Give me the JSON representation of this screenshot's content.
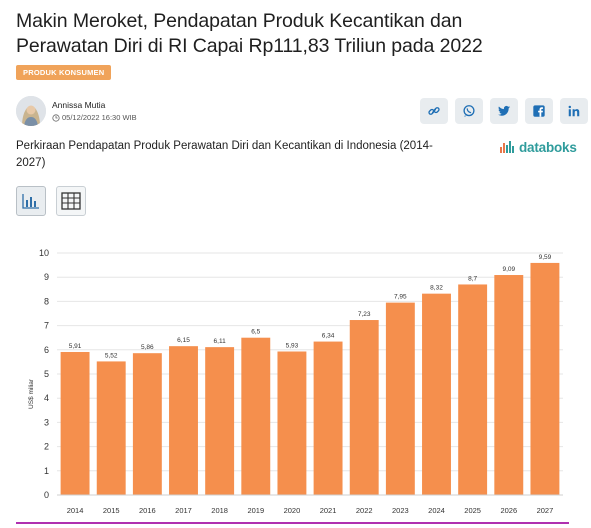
{
  "article": {
    "headline": "Makin Meroket, Pendapatan Produk Kecantikan dan Perawatan Diri di RI Capai Rp111,83 Triliun pada 2022",
    "category": "PRODUK KONSUMEN",
    "author": "Annissa Mutia",
    "date": "05/12/2022 16:30 WIB"
  },
  "share": [
    {
      "icon": "link-icon"
    },
    {
      "icon": "whatsapp-icon"
    },
    {
      "icon": "twitter-icon"
    },
    {
      "icon": "facebook-icon"
    },
    {
      "icon": "linkedin-icon"
    }
  ],
  "brand": {
    "logo_text": "databoks",
    "accent": "#2f9c9c"
  },
  "chart_view": {
    "active": "bar-chart-icon",
    "other": "table-icon"
  },
  "colors": {
    "bar": "#f58f4d",
    "category_badge": "#f0a35a",
    "bottom_bar": "#b030b0"
  },
  "chart_data": {
    "type": "bar",
    "title": "Perkiraan Pendapatan Produk Perawatan Diri dan Kecantikan di Indonesia (2014-2027)",
    "xlabel": "",
    "ylabel": "US$ miliar",
    "ylim": [
      0,
      10
    ],
    "yticks": [
      0,
      1,
      2,
      3,
      4,
      5,
      6,
      7,
      8,
      9,
      10
    ],
    "categories": [
      "2014",
      "2015",
      "2016",
      "2017",
      "2018",
      "2019",
      "2020",
      "2021",
      "2022",
      "2023",
      "2024",
      "2025",
      "2026",
      "2027"
    ],
    "values": [
      5.91,
      5.52,
      5.86,
      6.15,
      6.11,
      6.5,
      5.93,
      6.34,
      7.23,
      7.95,
      8.32,
      8.7,
      9.09,
      9.59
    ],
    "labels": [
      "5,91",
      "5,52",
      "5,86",
      "6,15",
      "6,11",
      "6,5",
      "5,93",
      "6,34",
      "7,23",
      "7,95",
      "8,32",
      "8,7",
      "9,09",
      "9,59"
    ],
    "grid": true
  }
}
